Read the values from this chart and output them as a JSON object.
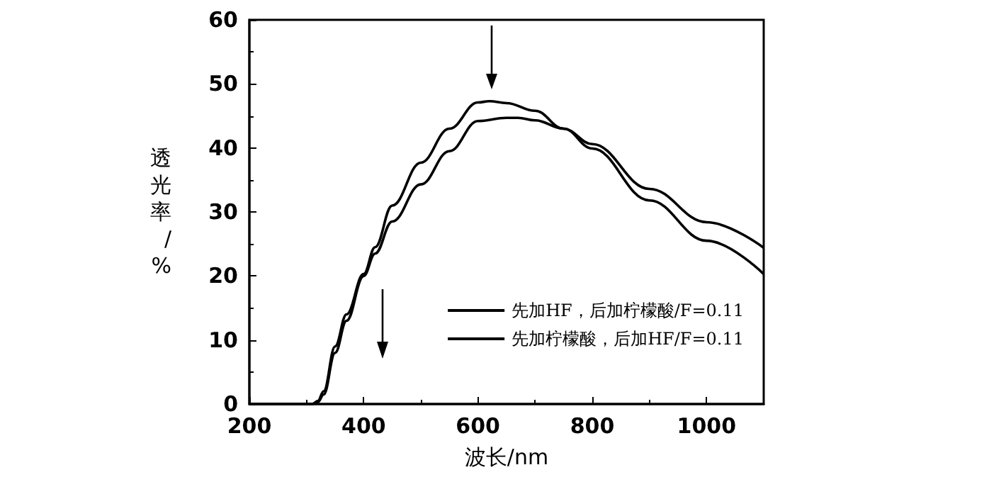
{
  "chart_data": {
    "type": "line",
    "xlabel": "波长/nm",
    "ylabel": "透光率/%",
    "xlim": [
      200,
      1100
    ],
    "ylim": [
      0,
      60
    ],
    "xticks": [
      200,
      400,
      600,
      800,
      1000
    ],
    "yticks": [
      0,
      10,
      20,
      30,
      40,
      50,
      60
    ],
    "grid": false,
    "legend": "bottom right",
    "marker": "none",
    "line_style": "solid",
    "series": [
      {
        "name": "先加HF，后加柠檬酸/F=0.11",
        "color": "#000000",
        "x": [
          200,
          300,
          310,
          320,
          330,
          350,
          370,
          400,
          420,
          450,
          500,
          550,
          600,
          620,
          650,
          700,
          750,
          800,
          900,
          1000,
          1100
        ],
        "values": [
          0,
          0,
          0,
          0.5,
          2,
          9,
          14,
          20.3,
          24.5,
          31,
          37.7,
          43,
          47.1,
          47.3,
          47,
          45.8,
          43,
          39.9,
          31.8,
          25.5,
          20.3
        ]
      },
      {
        "name": "先加柠檬酸，后加HF/F=0.11",
        "color": "#000000",
        "x": [
          200,
          300,
          310,
          320,
          330,
          350,
          370,
          400,
          420,
          450,
          500,
          550,
          600,
          650,
          670,
          700,
          750,
          800,
          900,
          1000,
          1100
        ],
        "values": [
          0,
          0,
          0,
          0.3,
          1.5,
          8,
          13,
          20,
          23.5,
          28.5,
          34.3,
          39.5,
          44.2,
          44.7,
          44.7,
          44.3,
          43,
          40.6,
          33.6,
          28.4,
          24.4
        ]
      }
    ]
  }
}
